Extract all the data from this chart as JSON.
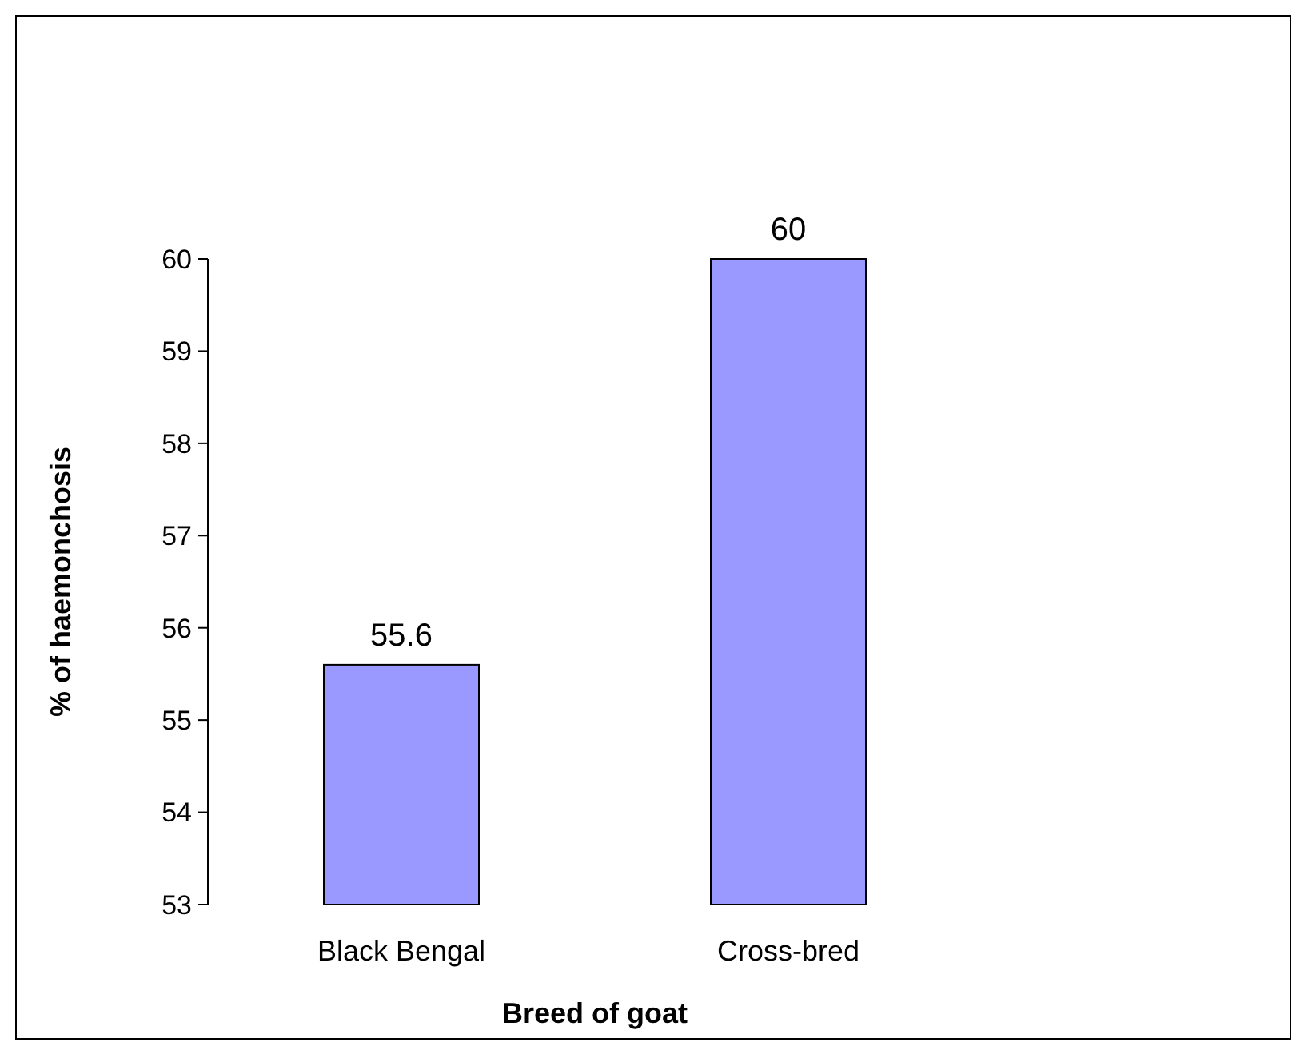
{
  "chart_data": {
    "type": "bar",
    "xlabel": "Breed of goat",
    "ylabel": "% of haemonchosis",
    "categories": [
      "Black Bengal",
      "Cross-bred"
    ],
    "values": [
      55.6,
      60
    ],
    "color": "#9999ff",
    "data_labels": true,
    "ylim": [
      53,
      60
    ],
    "yticks": [
      53,
      54,
      55,
      56,
      57,
      58,
      59,
      60
    ],
    "grid": false
  }
}
